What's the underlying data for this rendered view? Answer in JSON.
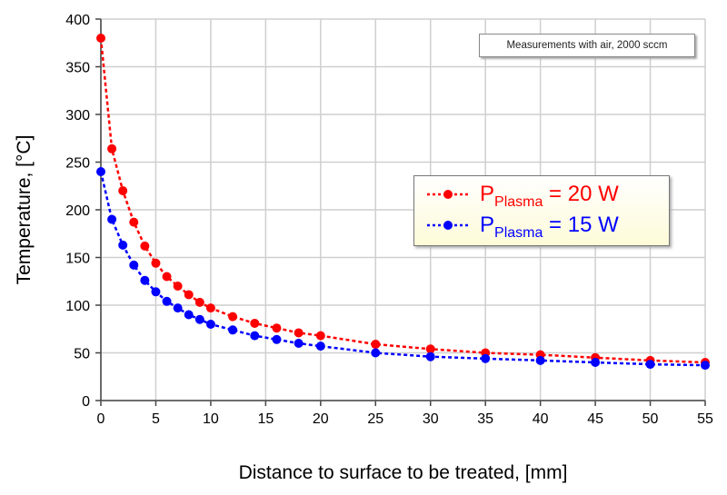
{
  "chart_data": {
    "type": "line",
    "title": "",
    "xlabel": "Distance to surface to be treated, [mm]",
    "ylabel": "Temperature, [°C]",
    "xlim": [
      0,
      55
    ],
    "ylim": [
      0,
      400
    ],
    "xticks": [
      0,
      5,
      10,
      15,
      20,
      25,
      30,
      35,
      40,
      45,
      50,
      55
    ],
    "yticks": [
      0,
      50,
      100,
      150,
      200,
      250,
      300,
      350,
      400
    ],
    "grid": true,
    "legend_position": "center-right",
    "annotation": "Measurements with air, 2000 sccm",
    "x": [
      0,
      1,
      2,
      3,
      4,
      5,
      6,
      7,
      8,
      9,
      10,
      12,
      14,
      16,
      18,
      20,
      25,
      30,
      35,
      40,
      45,
      50,
      55
    ],
    "series": [
      {
        "name": "P_Plasma = 20 W",
        "label_main": "P",
        "label_sub": "Plasma",
        "label_rest": " = 20 W",
        "color": "#ff0000",
        "values": [
          380,
          264,
          220,
          187,
          162,
          144,
          130,
          120,
          111,
          103,
          97,
          88,
          81,
          76,
          71,
          68,
          59,
          54,
          50,
          48,
          45,
          42,
          40
        ]
      },
      {
        "name": "P_Plasma = 15 W",
        "label_main": "P",
        "label_sub": "Plasma",
        "label_rest": " = 15 W",
        "color": "#0000ff",
        "values": [
          240,
          190,
          163,
          142,
          126,
          114,
          104,
          97,
          90,
          85,
          80,
          74,
          68,
          64,
          60,
          57,
          50,
          46,
          44,
          42,
          40,
          38,
          37
        ]
      }
    ]
  }
}
